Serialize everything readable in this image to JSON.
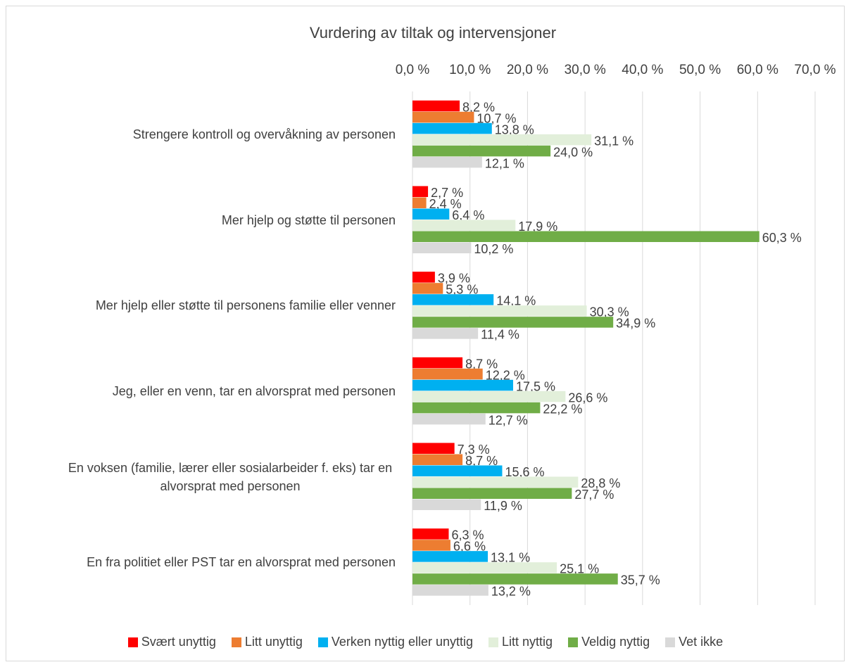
{
  "chart_data": {
    "type": "hbar",
    "title": "Vurdering av tiltak og intervensjoner",
    "categories": [
      "Strengere kontroll og overvåkning av personen",
      "Mer hjelp og støtte til personen",
      "Mer hjelp eller støtte til personens familie eller venner",
      "Jeg, eller en venn, tar en alvorsprat med personen",
      "En voksen (familie, lærer eller sosialarbeider f. eks) tar en alvorsprat med personen",
      "En fra politiet eller PST tar en alvorsprat med personen"
    ],
    "series": [
      {
        "name": "Svært unyttig",
        "color": "#ff0000",
        "values": [
          8.2,
          2.7,
          3.9,
          8.7,
          7.3,
          6.3
        ],
        "value_labels": [
          "8,2 %",
          "2,7 %",
          "3,9 %",
          "8,7 %",
          "7,3 %",
          "6,3 %"
        ]
      },
      {
        "name": "Litt unyttig",
        "color": "#ed7d31",
        "values": [
          10.7,
          2.4,
          5.3,
          12.2,
          8.7,
          6.6
        ],
        "value_labels": [
          "10,7 %",
          "2,4 %",
          "5,3 %",
          "12,2 %",
          "8,7 %",
          "6,6 %"
        ]
      },
      {
        "name": "Verken nyttig eller unyttig",
        "color": "#00b0f0",
        "values": [
          13.8,
          6.4,
          14.1,
          17.5,
          15.6,
          13.1
        ],
        "value_labels": [
          "13,8 %",
          "6,4 %",
          "14,1 %",
          "17,5 %",
          "15,6 %",
          "13,1 %"
        ]
      },
      {
        "name": "Litt nyttig",
        "color": "#e2efda",
        "values": [
          31.1,
          17.9,
          30.3,
          26.6,
          28.8,
          25.1
        ],
        "value_labels": [
          "31,1 %",
          "17,9 %",
          "30,3 %",
          "26,6 %",
          "28,8 %",
          "25,1 %"
        ]
      },
      {
        "name": "Veldig nyttig",
        "color": "#70ad47",
        "values": [
          24.0,
          60.3,
          34.9,
          22.2,
          27.7,
          35.7
        ],
        "value_labels": [
          "24,0 %",
          "60,3 %",
          "34,9 %",
          "22,2 %",
          "27,7 %",
          "35,7 %"
        ]
      },
      {
        "name": "Vet ikke",
        "color": "#d9d9d9",
        "values": [
          12.1,
          10.2,
          11.4,
          12.7,
          11.9,
          13.2
        ],
        "value_labels": [
          "12,1 %",
          "10,2 %",
          "11,4 %",
          "12,7 %",
          "11,9 %",
          "13,2 %"
        ]
      }
    ],
    "xlim": [
      0,
      70
    ],
    "xticks": [
      {
        "value": 0,
        "label": "0,0 %"
      },
      {
        "value": 10,
        "label": "10,0 %"
      },
      {
        "value": 20,
        "label": "20,0 %"
      },
      {
        "value": 30,
        "label": "30,0 %"
      },
      {
        "value": 40,
        "label": "40,0 %"
      },
      {
        "value": 50,
        "label": "50,0 %"
      },
      {
        "value": 60,
        "label": "60,0 %"
      },
      {
        "value": 70,
        "label": "70,0 %"
      }
    ],
    "grid": true,
    "legend": "bottom"
  }
}
